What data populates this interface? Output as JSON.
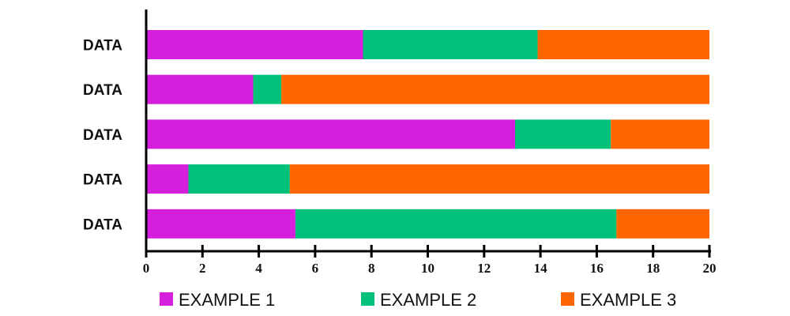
{
  "chart_data": {
    "type": "bar",
    "orientation": "horizontal",
    "stacked": true,
    "categories": [
      "DATA",
      "DATA",
      "DATA",
      "DATA",
      "DATA"
    ],
    "series": [
      {
        "name": "EXAMPLE 1",
        "color": "#d61fdc",
        "values": [
          7.7,
          3.8,
          13.1,
          1.5,
          5.3
        ]
      },
      {
        "name": "EXAMPLE 2",
        "color": "#00c17a",
        "values": [
          6.2,
          1.0,
          3.4,
          3.6,
          11.4
        ]
      },
      {
        "name": "EXAMPLE 3",
        "color": "#ff6600",
        "values": [
          6.1,
          15.2,
          3.5,
          14.9,
          3.3
        ]
      }
    ],
    "xlim": [
      0,
      20
    ],
    "xticks": [
      "0",
      "2",
      "4",
      "6",
      "8",
      "10",
      "12",
      "14",
      "16",
      "18",
      "20"
    ],
    "grid": false,
    "legend_placement": "bottom",
    "title": "",
    "xlabel": "",
    "ylabel": ""
  }
}
